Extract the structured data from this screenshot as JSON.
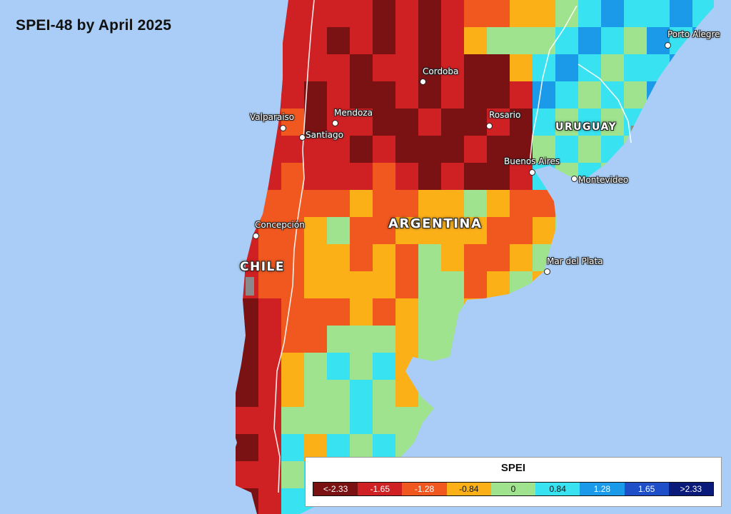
{
  "title": "SPEI-48 by April 2025",
  "legend": {
    "title": "SPEI",
    "classes": [
      {
        "label": "<-2.33",
        "color": "#7a1214"
      },
      {
        "label": "-1.65",
        "color": "#cf2024"
      },
      {
        "label": "-1.28",
        "color": "#f0581f"
      },
      {
        "label": "-0.84",
        "color": "#fbb018"
      },
      {
        "label": "0",
        "color": "#9fe38e"
      },
      {
        "label": "0.84",
        "color": "#38e2f0"
      },
      {
        "label": "1.28",
        "color": "#1a9ae8"
      },
      {
        "label": "1.65",
        "color": "#1f4fc8"
      },
      {
        "label": ">2.33",
        "color": "#0a1a7a"
      }
    ]
  },
  "countries": [
    "CHILE",
    "ARGENTINA",
    "URUGUAY"
  ],
  "cities": [
    "Porto Alegre",
    "Cordoba",
    "Valparaiso",
    "Mendoza",
    "Santiago",
    "Rosario",
    "Buenos Aires",
    "Montevideo",
    "Concepción",
    "Mar del Plata"
  ],
  "colors": {
    "ocean": "#a9cdf6",
    "border": "#ffffff",
    "nodata": "#8a8a8a"
  }
}
